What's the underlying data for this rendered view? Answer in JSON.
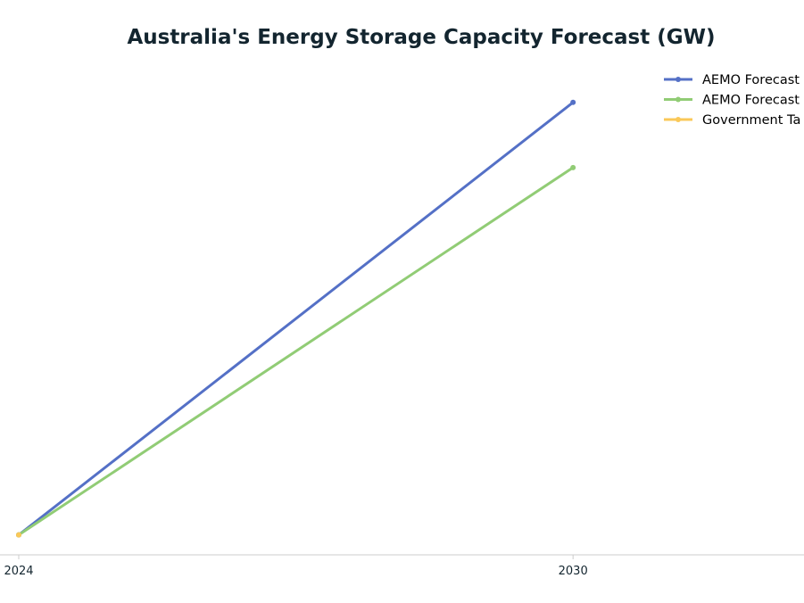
{
  "chart_data": {
    "type": "line",
    "title": "Australia's Energy Storage Capacity Forecast (GW)",
    "xlabel": "",
    "ylabel": "",
    "x": [
      2024,
      2030
    ],
    "xlim": [
      2024,
      2032.5
    ],
    "ylim": [
      2.3,
      30
    ],
    "grid": false,
    "legend_position": "top-right",
    "series": [
      {
        "name": "AEMO Forecast",
        "color": "#5470c6",
        "values": [
          3.4,
          27.3
        ]
      },
      {
        "name": "AEMO Forecast",
        "color": "#91cc75",
        "values": [
          3.4,
          23.7
        ]
      },
      {
        "name": "Government Ta",
        "color": "#fac858",
        "values": [
          3.4,
          null
        ]
      }
    ]
  }
}
